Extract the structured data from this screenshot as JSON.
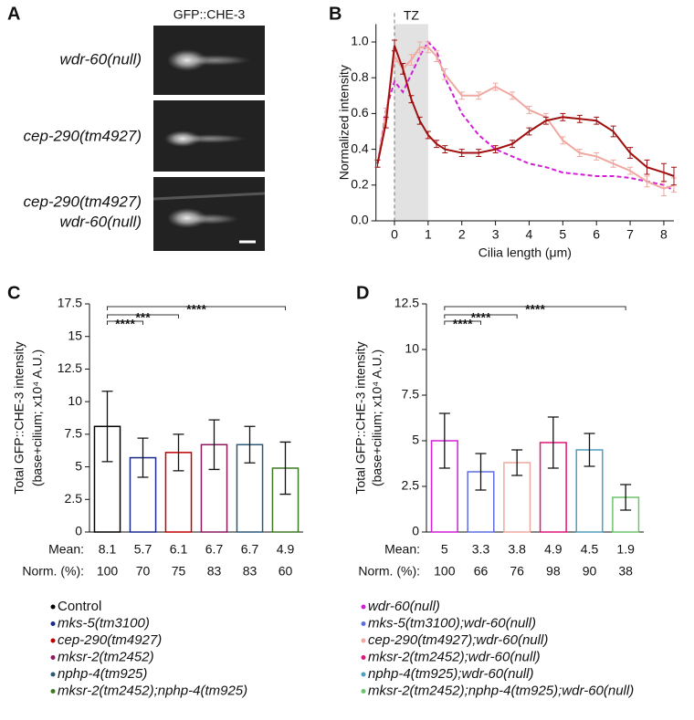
{
  "panel_labels": [
    "A",
    "B",
    "C",
    "D"
  ],
  "panel_a": {
    "title": "GFP::CHE-3",
    "rows": [
      {
        "lines": [
          "wdr-60(null)"
        ],
        "color": "#d21fd6"
      },
      {
        "lines": [
          "cep-290(tm4927)"
        ],
        "color": "#b01010"
      },
      {
        "lines": [
          "cep-290(tm4927)",
          "wdr-60(null)"
        ],
        "color": "#f0a8a0"
      }
    ]
  },
  "chart_data": [
    {
      "type": "line",
      "xlabel": "Cilia length (μm)",
      "ylabel": "Normalized intensity",
      "xlim": [
        -0.55,
        8.3
      ],
      "ylim": [
        0,
        1.1
      ],
      "xticks": [
        0,
        1,
        2,
        3,
        4,
        5,
        6,
        7,
        8
      ],
      "yticks": [
        {
          "value": 0,
          "label": "0.0"
        },
        0.2,
        0.4,
        0.6,
        0.8,
        {
          "value": 1,
          "label": "1.0"
        }
      ],
      "shaded_region": {
        "range": [
          0,
          1
        ],
        "label": "TZ"
      },
      "x": [
        -0.5,
        -0.25,
        0,
        0.25,
        0.5,
        0.75,
        1,
        1.25,
        1.5,
        2,
        2.5,
        3,
        3.5,
        4,
        4.5,
        5,
        5.5,
        6,
        6.5,
        7,
        7.5,
        8,
        8.3
      ],
      "series": [
        {
          "color": "#d21fd6",
          "dashed": true,
          "values": [
            0.32,
            0.62,
            0.78,
            0.72,
            0.82,
            0.92,
            1.0,
            0.95,
            0.8,
            0.6,
            0.48,
            0.4,
            0.36,
            0.32,
            0.3,
            0.27,
            0.26,
            0.25,
            0.25,
            0.24,
            0.22,
            0.2,
            0.17
          ]
        },
        {
          "color": "#f0a8a0",
          "dashed": false,
          "values": [
            0.32,
            0.6,
            0.92,
            0.85,
            0.9,
            0.97,
            0.97,
            0.92,
            0.82,
            0.7,
            0.7,
            0.75,
            0.7,
            0.62,
            0.58,
            0.45,
            0.38,
            0.36,
            0.32,
            0.28,
            0.22,
            0.18,
            0.2
          ],
          "errors": [
            0.02,
            0.03,
            0.03,
            0.03,
            0.03,
            0.03,
            0.03,
            0.03,
            0.03,
            0.02,
            0.02,
            0.02,
            0.02,
            0.02,
            0.02,
            0.02,
            0.02,
            0.02,
            0.02,
            0.02,
            0.03,
            0.04,
            0.04
          ]
        },
        {
          "color": "#a01010",
          "dashed": false,
          "values": [
            0.32,
            0.55,
            0.98,
            0.85,
            0.68,
            0.56,
            0.48,
            0.43,
            0.4,
            0.38,
            0.38,
            0.4,
            0.43,
            0.5,
            0.56,
            0.58,
            0.57,
            0.56,
            0.5,
            0.38,
            0.3,
            0.27,
            0.25
          ],
          "errors": [
            0.02,
            0.03,
            0.03,
            0.03,
            0.02,
            0.02,
            0.02,
            0.02,
            0.02,
            0.02,
            0.02,
            0.02,
            0.02,
            0.02,
            0.02,
            0.02,
            0.02,
            0.02,
            0.03,
            0.03,
            0.04,
            0.05,
            0.05
          ]
        }
      ]
    },
    {
      "type": "bar",
      "ylabel": [
        "Total GFP::CHE-3 intensity",
        "(base+cilium; x10⁴ A.U.)"
      ],
      "ylim": [
        0,
        17.5
      ],
      "yticks": [
        0,
        2.5,
        5,
        7.5,
        10,
        12.5,
        15,
        17.5
      ],
      "categories": [
        "Control",
        "mks-5(tm3100)",
        "cep-290(tm4927)",
        "mksr-2(tm2452)",
        "nphp-4(tm925)",
        "mksr-2(tm2452);nphp-4(tm925)"
      ],
      "colors": [
        "#000000",
        "#1a2a8c",
        "#c00000",
        "#8b1a5e",
        "#2c5878",
        "#3f7a22"
      ],
      "values": [
        8.1,
        5.7,
        6.1,
        6.7,
        6.7,
        4.9
      ],
      "errors": [
        2.7,
        1.5,
        1.4,
        1.9,
        1.4,
        2.0
      ],
      "row_labels": [
        "Mean:",
        "Norm. (%):"
      ],
      "norm_values": [
        100,
        70,
        75,
        83,
        83,
        60
      ],
      "comparisons": [
        {
          "from": 0,
          "to": 1,
          "label": "****"
        },
        {
          "from": 0,
          "to": 2,
          "label": "***"
        },
        {
          "from": 0,
          "to": 5,
          "label": "****"
        }
      ]
    },
    {
      "type": "bar",
      "ylabel": [
        "Total GFP::CHE-3 intensity",
        "(base+cilium; x10⁴ A.U.)"
      ],
      "ylim": [
        0,
        12.5
      ],
      "yticks": [
        0,
        2.5,
        5,
        7.5,
        10,
        12.5
      ],
      "categories": [
        "wdr-60(null)",
        "mks-5(tm3100);wdr-60(null)",
        "cep-290(tm4927);wdr-60(null)",
        "mksr-2(tm2452);wdr-60(null)",
        "nphp-4(tm925);wdr-60(null)",
        "mksr-2(tm2452);nphp-4(tm925);wdr-60(null)"
      ],
      "colors": [
        "#d21fd6",
        "#5e6ee0",
        "#f0a8a0",
        "#e0157a",
        "#4f9fbf",
        "#6cc46c"
      ],
      "values": [
        5.0,
        3.3,
        3.8,
        4.9,
        4.5,
        1.9
      ],
      "errors": [
        1.5,
        1.0,
        0.7,
        1.4,
        0.9,
        0.7
      ],
      "row_labels": [
        "Mean:",
        "Norm. (%):"
      ],
      "norm_values": [
        100,
        66,
        76,
        98,
        90,
        38
      ],
      "comparisons": [
        {
          "from": 0,
          "to": 1,
          "label": "****"
        },
        {
          "from": 0,
          "to": 2,
          "label": "****"
        },
        {
          "from": 0,
          "to": 5,
          "label": "****"
        }
      ]
    }
  ]
}
